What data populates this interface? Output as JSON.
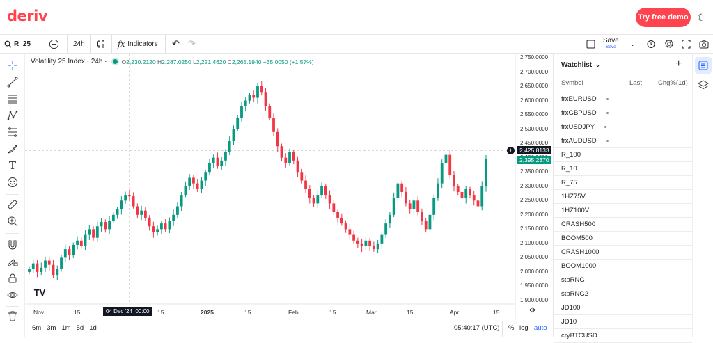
{
  "header": {
    "logo": "deriv",
    "demo_button": "Try free demo",
    "theme_icon": "moon-icon"
  },
  "toolbar": {
    "symbol": "R_25",
    "interval": "24h",
    "indicators": "Indicators",
    "save_label": "Save",
    "save_sub": "Save"
  },
  "chart": {
    "legend_title": "Volatility 25 Index · 24h ·",
    "ohlc": {
      "o": "2,230.2120",
      "h": "2,287.0250",
      "l": "2,221.4620",
      "c": "2,265.1940",
      "chg": "+35.0050 (+1.57%)"
    },
    "price_axis": [
      "2,750.0000",
      "2,700.0000",
      "2,650.0000",
      "2,600.0000",
      "2,550.0000",
      "2,500.0000",
      "2,450.0000",
      "2,400.0000",
      "2,350.0000",
      "2,300.0000",
      "2,250.0000",
      "2,200.0000",
      "2,150.0000",
      "2,100.0000",
      "2,050.0000",
      "2,000.0000",
      "1,950.0000",
      "1,900.0000"
    ],
    "crosshair_price": "2,425.8133",
    "last_price": "2,395.2370",
    "time_axis": [
      "Nov",
      "15",
      "15",
      "2025",
      "15",
      "Feb",
      "15",
      "Mar",
      "15",
      "Apr",
      "15"
    ],
    "crosshair_time": "04 Dec '24  00:00",
    "ranges": [
      "6m",
      "3m",
      "1m",
      "5d",
      "1d"
    ],
    "clock": "05:40:17 (UTC)",
    "percent": "%",
    "log": "log",
    "auto": "auto",
    "colors": {
      "up": "#089981",
      "down": "#f23645"
    }
  },
  "chart_data": {
    "type": "candlestick",
    "title": "Volatility 25 Index · 24h",
    "ylim": [
      1890,
      2770
    ],
    "closes": [
      2010,
      2030,
      2000,
      2015,
      2040,
      2025,
      1990,
      2010,
      2050,
      2080,
      2060,
      2095,
      2110,
      2090,
      2130,
      2150,
      2120,
      2160,
      2175,
      2150,
      2180,
      2200,
      2220,
      2250,
      2270,
      2265,
      2230,
      2200,
      2215,
      2190,
      2160,
      2140,
      2150,
      2170,
      2150,
      2180,
      2200,
      2230,
      2270,
      2300,
      2330,
      2310,
      2290,
      2320,
      2350,
      2380,
      2400,
      2370,
      2390,
      2420,
      2460,
      2500,
      2540,
      2580,
      2600,
      2620,
      2610,
      2650,
      2630,
      2580,
      2540,
      2490,
      2440,
      2400,
      2380,
      2420,
      2390,
      2350,
      2320,
      2290,
      2260,
      2240,
      2270,
      2300,
      2270,
      2240,
      2210,
      2190,
      2170,
      2150,
      2130,
      2110,
      2100,
      2090,
      2110,
      2090,
      2080,
      2100,
      2130,
      2170,
      2200,
      2260,
      2310,
      2280,
      2240,
      2220,
      2250,
      2210,
      2180,
      2150,
      2200,
      2260,
      2310,
      2380,
      2410,
      2340,
      2300,
      2280,
      2260,
      2290,
      2270,
      2250,
      2230,
      2300,
      2395
    ]
  },
  "watchlist": {
    "title": "Watchlist",
    "col_symbol": "Symbol",
    "col_last": "Last",
    "col_chg": "Chg%(1d)",
    "items": [
      "frxEURUSD",
      "frxGBPUSD",
      "frxUSDJPY",
      "frxAUDUSD",
      "R_100",
      "R_10",
      "R_75",
      "1HZ75V",
      "1HZ100V",
      "CRASH500",
      "BOOM500",
      "CRASH1000",
      "BOOM1000",
      "stpRNG",
      "stpRNG2",
      "JD100",
      "JD10",
      "cryBTCUSD"
    ]
  }
}
